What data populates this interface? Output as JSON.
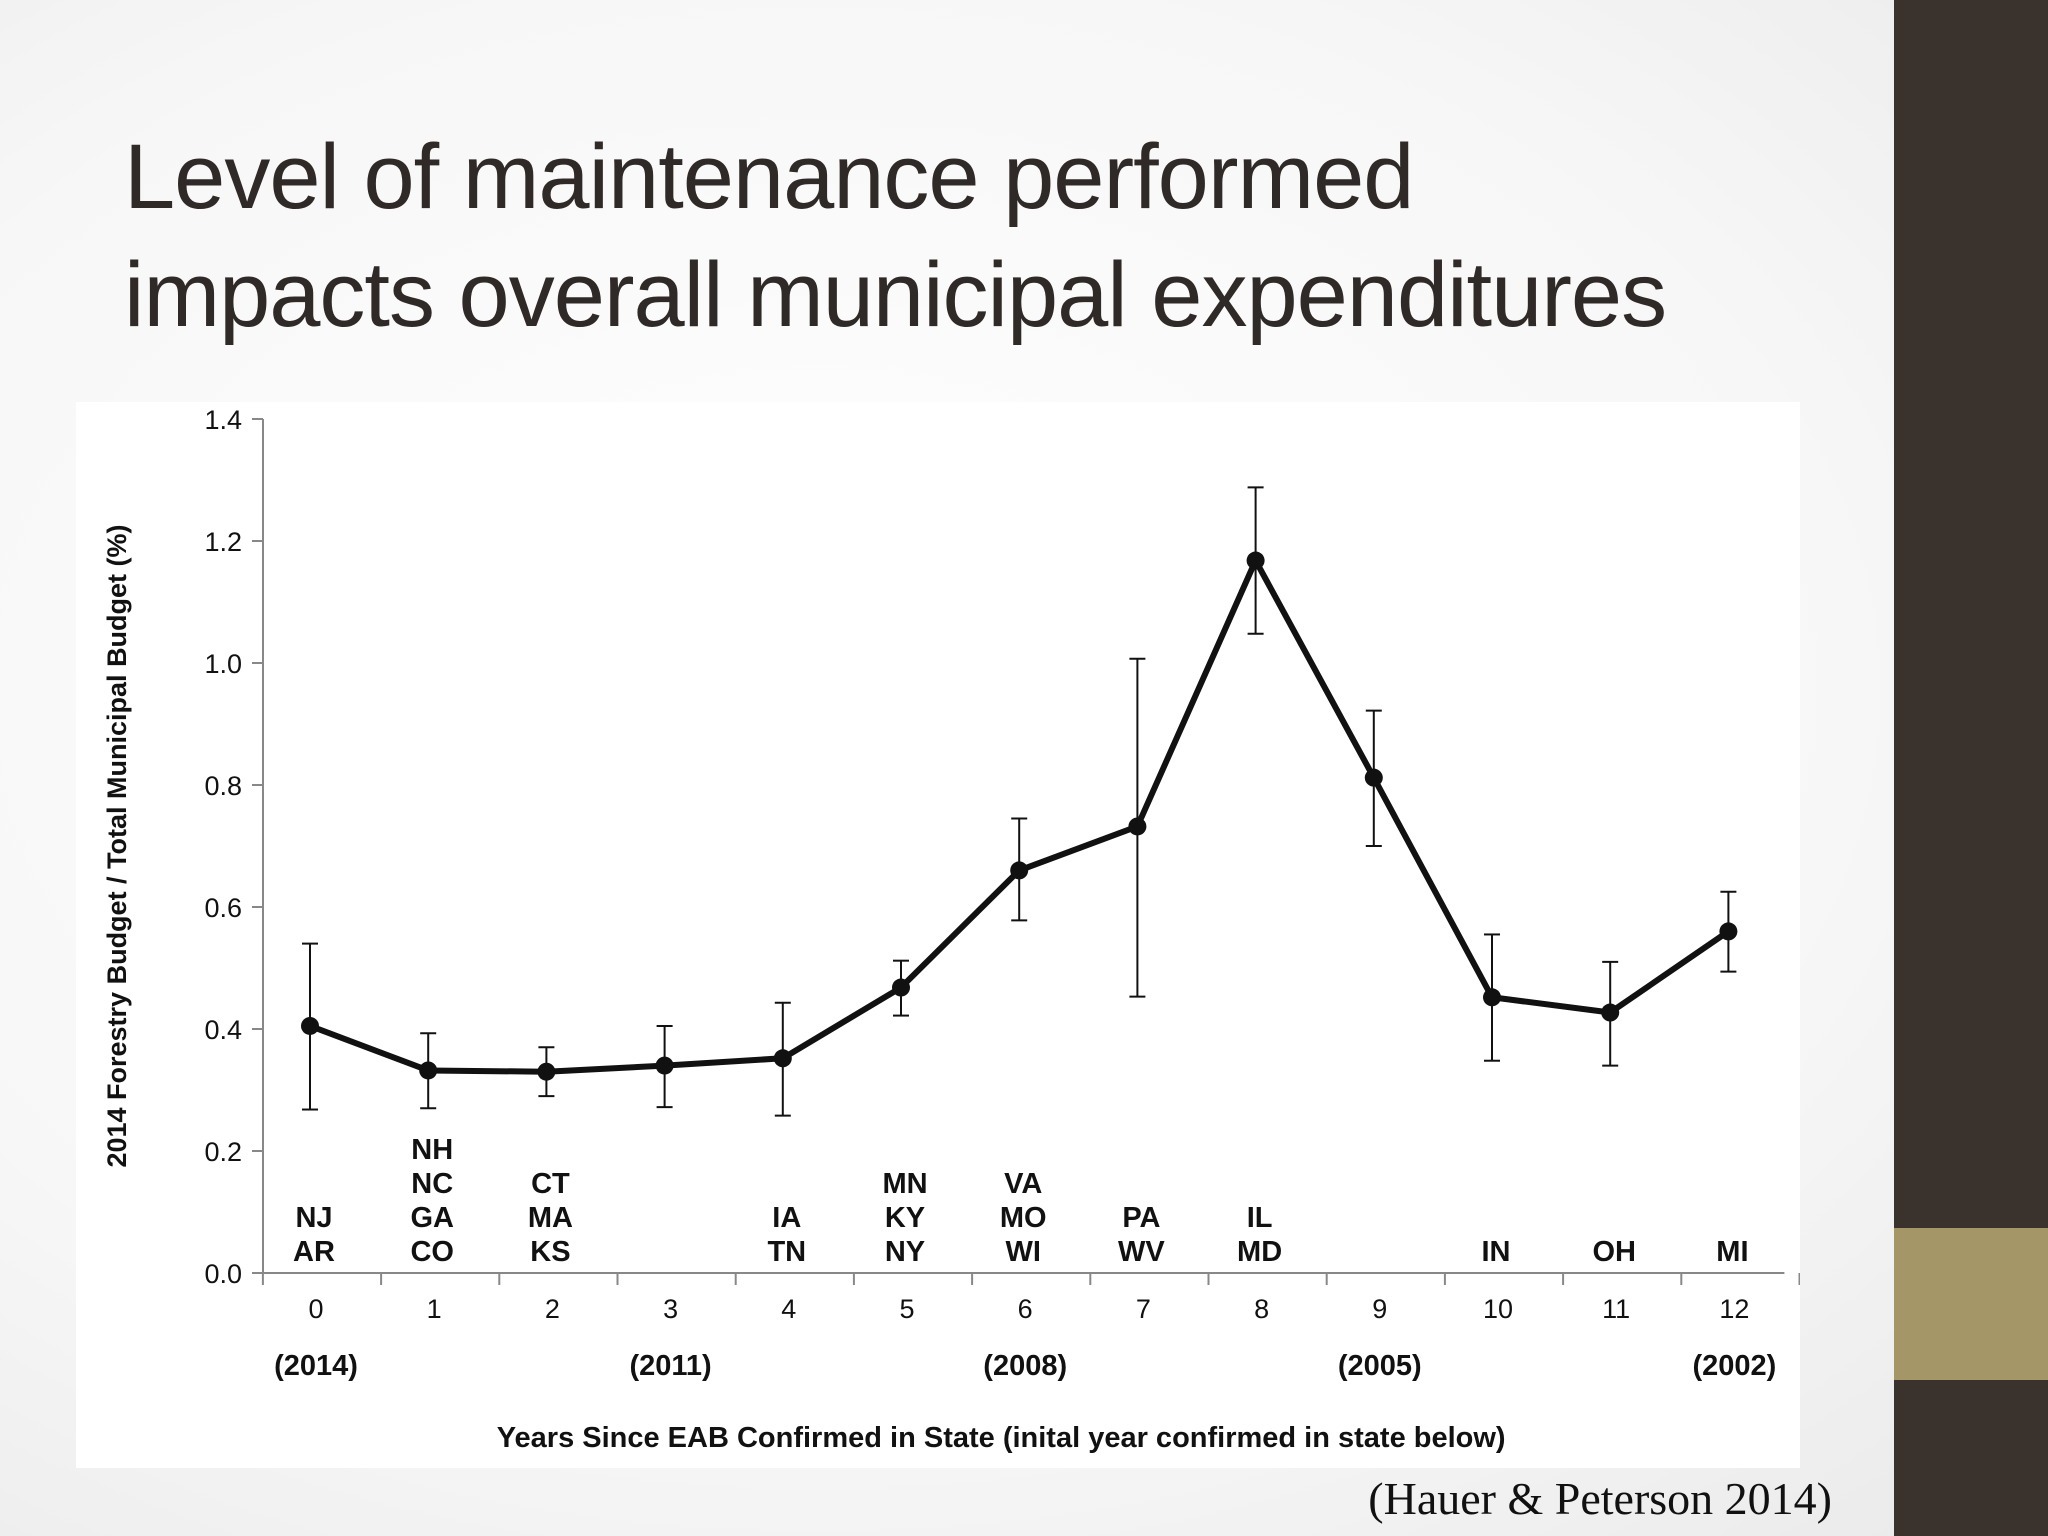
{
  "slide": {
    "title_lines": [
      "Level of maintenance performed",
      "impacts overall municipal expenditures"
    ],
    "citation": "(Hauer & Peterson 2014)",
    "colors": {
      "sidebar": "#3a322d",
      "sidebar_accent": "#a49666",
      "title_text": "#2f2a27"
    }
  },
  "chart_data": {
    "type": "line",
    "title": "",
    "xlabel": "Years Since EAB Confirmed in State (inital year confirmed in state below)",
    "ylabel": "2014 Forestry Budget / Total Municipal Budget (%)",
    "xlim": [
      0,
      12
    ],
    "ylim": [
      0.0,
      1.4
    ],
    "yticks": [
      "0.0",
      "0.2",
      "0.4",
      "0.6",
      "0.8",
      "1.0",
      "1.2",
      "1.4"
    ],
    "x": [
      0,
      1,
      2,
      3,
      4,
      5,
      6,
      7,
      8,
      9,
      10,
      11,
      12
    ],
    "xtick_labels": [
      "0",
      "1",
      "2",
      "3",
      "4",
      "5",
      "6",
      "7",
      "8",
      "9",
      "10",
      "11",
      "12"
    ],
    "year_labels": [
      {
        "x": 0,
        "label": "(2014)"
      },
      {
        "x": 3,
        "label": "(2011)"
      },
      {
        "x": 6,
        "label": "(2008)"
      },
      {
        "x": 9,
        "label": "(2005)"
      },
      {
        "x": 12,
        "label": "(2002)"
      }
    ],
    "series": [
      {
        "values": [
          0.405,
          0.332,
          0.33,
          0.34,
          0.352,
          0.468,
          0.66,
          0.732,
          1.168,
          0.812,
          0.452,
          0.427,
          0.56
        ],
        "error_upper": [
          0.54,
          0.393,
          0.37,
          0.405,
          0.443,
          0.512,
          0.745,
          1.007,
          1.288,
          0.922,
          0.555,
          0.51,
          0.625
        ],
        "error_lower": [
          0.268,
          0.27,
          0.29,
          0.272,
          0.258,
          0.422,
          0.578,
          0.453,
          1.048,
          0.7,
          0.348,
          0.34,
          0.494
        ]
      }
    ],
    "state_labels": [
      {
        "x": 0,
        "states": [
          "NJ",
          "AR"
        ]
      },
      {
        "x": 1,
        "states": [
          "NH",
          "NC",
          "GA",
          "CO"
        ]
      },
      {
        "x": 2,
        "states": [
          "CT",
          "MA",
          "KS"
        ]
      },
      {
        "x": 4,
        "states": [
          "IA",
          "TN"
        ]
      },
      {
        "x": 5,
        "states": [
          "MN",
          "KY",
          "NY"
        ]
      },
      {
        "x": 6,
        "states": [
          "VA",
          "MO",
          "WI"
        ]
      },
      {
        "x": 7,
        "states": [
          "PA",
          "WV"
        ]
      },
      {
        "x": 8,
        "states": [
          "IL",
          "MD"
        ]
      },
      {
        "x": 10,
        "states": [
          "IN"
        ]
      },
      {
        "x": 11,
        "states": [
          "OH"
        ]
      },
      {
        "x": 12,
        "states": [
          "MI"
        ]
      }
    ],
    "grid": false,
    "legend": "none"
  }
}
